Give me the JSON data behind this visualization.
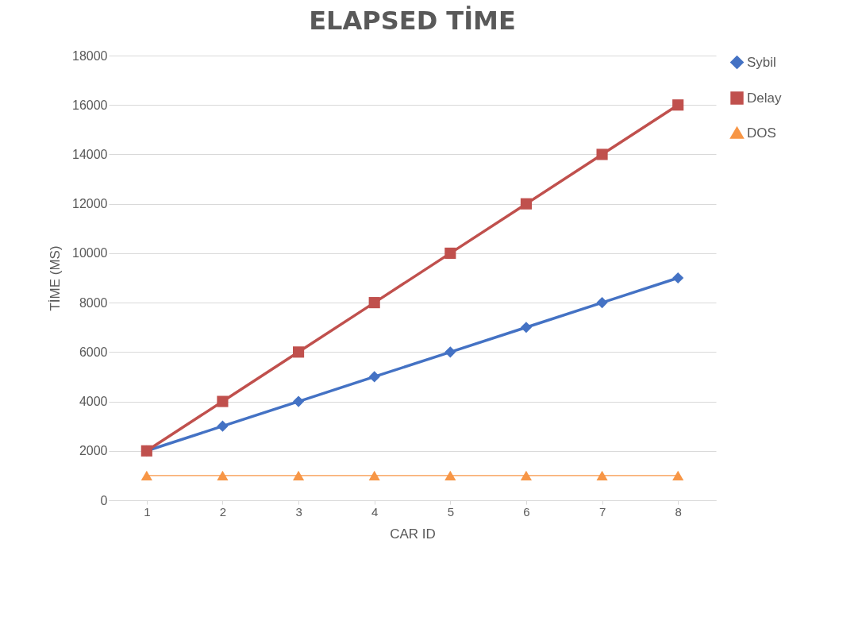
{
  "chart_data": {
    "type": "line",
    "title": "ELAPSED TİME",
    "xlabel": "CAR ID",
    "ylabel": "TİME (MS)",
    "categories": [
      "1",
      "2",
      "3",
      "4",
      "5",
      "6",
      "7",
      "8"
    ],
    "series": [
      {
        "name": "Sybil",
        "color": "#4472c4",
        "marker": "diamond",
        "values": [
          2000,
          3000,
          4000,
          5000,
          6000,
          7000,
          8000,
          9000
        ]
      },
      {
        "name": "Delay",
        "color": "#c0504d",
        "marker": "square",
        "values": [
          2000,
          4000,
          6000,
          8000,
          10000,
          12000,
          14000,
          16000
        ]
      },
      {
        "name": "DOS",
        "color": "#f79646",
        "marker": "triangle",
        "values": [
          1000,
          1000,
          1000,
          1000,
          1000,
          1000,
          1000,
          1000
        ]
      }
    ],
    "ylim": [
      0,
      18000
    ],
    "yticks": [
      0,
      2000,
      4000,
      6000,
      8000,
      10000,
      12000,
      14000,
      16000,
      18000
    ],
    "grid": "y",
    "legend": "right"
  }
}
